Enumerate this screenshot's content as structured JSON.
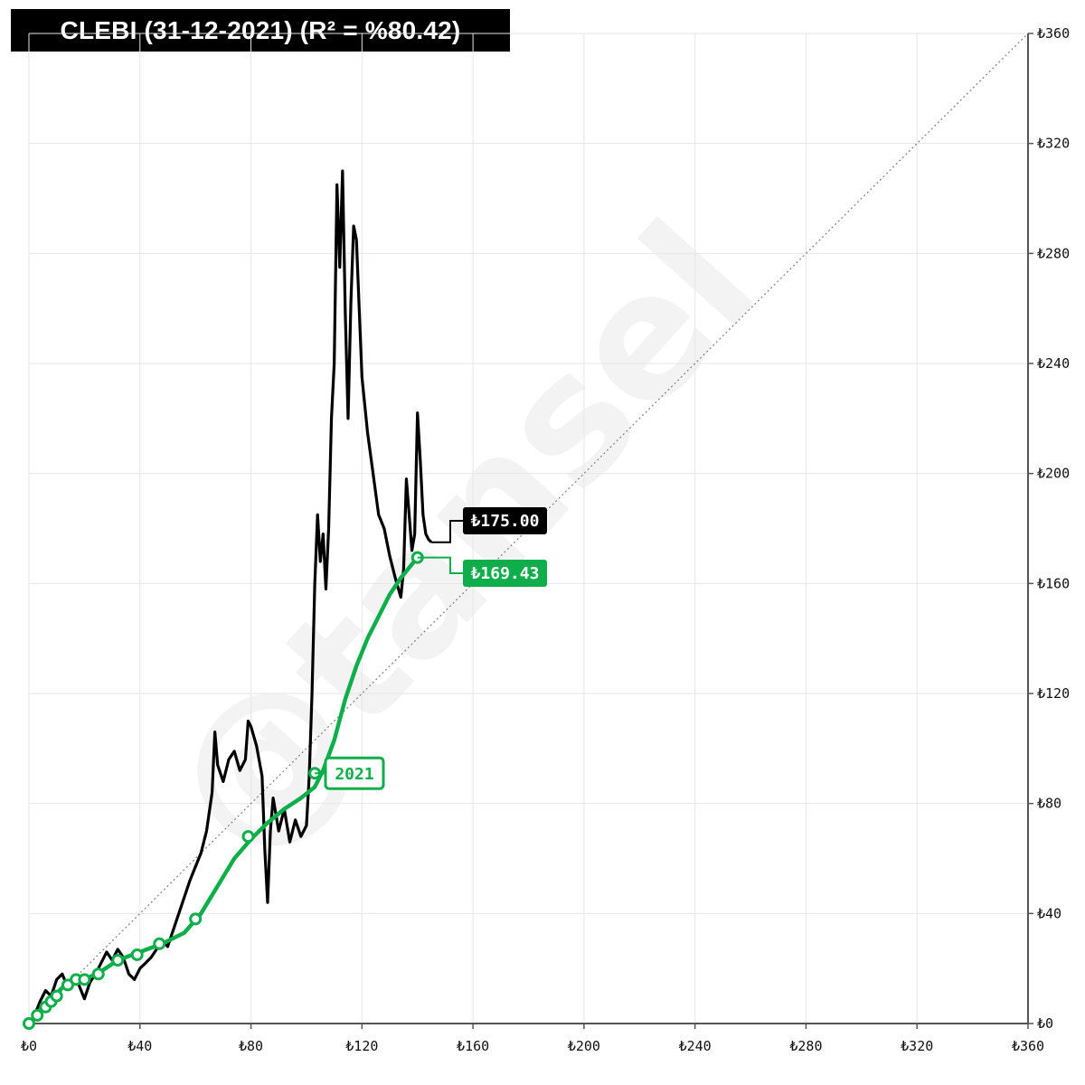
{
  "title": "CLEBI (31-12-2021) (R² = %80.42)",
  "watermark": "@tansel",
  "colors": {
    "price": "#000000",
    "fit": "#0fae4b",
    "diagonal": "#888888",
    "grid": "#e6e6e6"
  },
  "chart_data": {
    "type": "line",
    "title": "CLEBI (31-12-2021) (R² = %80.42)",
    "xlabel": "",
    "ylabel": "",
    "xlim": [
      0,
      360
    ],
    "ylim": [
      0,
      360
    ],
    "x_ticks": [
      "₺0",
      "₺40",
      "₺80",
      "₺120",
      "₺160",
      "₺200",
      "₺240",
      "₺280",
      "₺320",
      "₺360"
    ],
    "y_ticks": [
      "₺0",
      "₺40",
      "₺80",
      "₺120",
      "₺160",
      "₺200",
      "₺240",
      "₺280",
      "₺320",
      "₺360"
    ],
    "grid": true,
    "series": [
      {
        "color": "#000000",
        "points": [
          [
            0,
            0
          ],
          [
            2,
            3
          ],
          [
            4,
            8
          ],
          [
            6,
            12
          ],
          [
            8,
            10
          ],
          [
            10,
            16
          ],
          [
            12,
            18
          ],
          [
            14,
            13
          ],
          [
            16,
            17
          ],
          [
            18,
            14
          ],
          [
            20,
            9
          ],
          [
            22,
            15
          ],
          [
            24,
            18
          ],
          [
            26,
            22
          ],
          [
            28,
            26
          ],
          [
            30,
            23
          ],
          [
            32,
            27
          ],
          [
            34,
            24
          ],
          [
            36,
            18
          ],
          [
            38,
            16
          ],
          [
            40,
            20
          ],
          [
            42,
            22
          ],
          [
            44,
            24
          ],
          [
            46,
            27
          ],
          [
            48,
            30
          ],
          [
            50,
            28
          ],
          [
            52,
            34
          ],
          [
            54,
            40
          ],
          [
            56,
            46
          ],
          [
            58,
            52
          ],
          [
            60,
            57
          ],
          [
            62,
            62
          ],
          [
            64,
            70
          ],
          [
            66,
            84
          ],
          [
            67,
            106
          ],
          [
            68,
            94
          ],
          [
            70,
            88
          ],
          [
            72,
            96
          ],
          [
            74,
            99
          ],
          [
            76,
            92
          ],
          [
            78,
            96
          ],
          [
            79,
            110
          ],
          [
            80,
            108
          ],
          [
            82,
            101
          ],
          [
            84,
            90
          ],
          [
            85,
            63
          ],
          [
            86,
            44
          ],
          [
            87,
            70
          ],
          [
            88,
            82
          ],
          [
            90,
            70
          ],
          [
            92,
            78
          ],
          [
            94,
            66
          ],
          [
            96,
            74
          ],
          [
            98,
            68
          ],
          [
            100,
            72
          ],
          [
            101,
            90
          ],
          [
            102,
            120
          ],
          [
            103,
            160
          ],
          [
            104,
            185
          ],
          [
            105,
            168
          ],
          [
            106,
            178
          ],
          [
            107,
            158
          ],
          [
            108,
            180
          ],
          [
            109,
            220
          ],
          [
            110,
            240
          ],
          [
            111,
            305
          ],
          [
            112,
            275
          ],
          [
            113,
            310
          ],
          [
            114,
            258
          ],
          [
            115,
            220
          ],
          [
            116,
            262
          ],
          [
            117,
            290
          ],
          [
            118,
            285
          ],
          [
            119,
            260
          ],
          [
            120,
            235
          ],
          [
            122,
            215
          ],
          [
            124,
            200
          ],
          [
            126,
            185
          ],
          [
            128,
            180
          ],
          [
            130,
            170
          ],
          [
            132,
            162
          ],
          [
            134,
            155
          ],
          [
            135,
            165
          ],
          [
            136,
            198
          ],
          [
            137,
            185
          ],
          [
            138,
            172
          ],
          [
            139,
            178
          ],
          [
            140,
            222
          ],
          [
            141,
            205
          ],
          [
            142,
            185
          ],
          [
            143,
            178
          ],
          [
            144,
            176
          ],
          [
            145,
            175
          ]
        ]
      },
      {
        "color": "#0fae4b",
        "points": [
          [
            0,
            0
          ],
          [
            4,
            5
          ],
          [
            8,
            9
          ],
          [
            12,
            13
          ],
          [
            16,
            16
          ],
          [
            20,
            16
          ],
          [
            26,
            19
          ],
          [
            32,
            23
          ],
          [
            40,
            26
          ],
          [
            48,
            29
          ],
          [
            56,
            33
          ],
          [
            62,
            40
          ],
          [
            68,
            50
          ],
          [
            74,
            60
          ],
          [
            80,
            67
          ],
          [
            86,
            73
          ],
          [
            92,
            78
          ],
          [
            98,
            82
          ],
          [
            103,
            86
          ],
          [
            106,
            92
          ],
          [
            110,
            103
          ],
          [
            114,
            118
          ],
          [
            118,
            130
          ],
          [
            122,
            140
          ],
          [
            126,
            148
          ],
          [
            130,
            156
          ],
          [
            134,
            162
          ],
          [
            138,
            167
          ],
          [
            140,
            169.43
          ]
        ],
        "markers": [
          [
            0,
            0
          ],
          [
            3,
            3
          ],
          [
            6,
            6
          ],
          [
            8,
            8
          ],
          [
            10,
            10
          ],
          [
            14,
            14
          ],
          [
            17,
            16
          ],
          [
            20,
            16
          ],
          [
            25,
            18
          ],
          [
            32,
            23
          ],
          [
            39,
            25
          ],
          [
            47,
            29
          ],
          [
            60,
            38
          ],
          [
            79,
            68
          ],
          [
            103,
            91
          ],
          [
            140,
            169.43
          ]
        ]
      }
    ],
    "reference_line": {
      "style": "dotted",
      "from": [
        0,
        0
      ],
      "to": [
        360,
        360
      ]
    },
    "annotations": [
      {
        "text": "₺175.00",
        "value": 175.0,
        "color": "#000000"
      },
      {
        "text": "₺169.43",
        "value": 169.43,
        "color": "#0fae4b"
      },
      {
        "text": "2021",
        "x": 103,
        "y": 91,
        "color": "#0fae4b"
      }
    ]
  }
}
